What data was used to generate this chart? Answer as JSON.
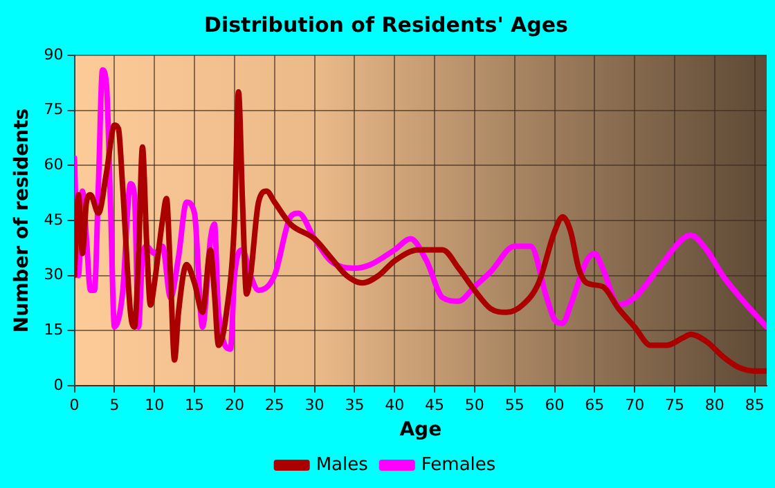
{
  "chart_data": {
    "type": "line",
    "title": "Distribution of Residents' Ages",
    "xlabel": "Age",
    "ylabel": "Number of residents",
    "xlim": [
      0,
      86.5
    ],
    "xticks": [
      0,
      5,
      10,
      15,
      20,
      25,
      30,
      35,
      40,
      45,
      50,
      55,
      60,
      65,
      70,
      75,
      80,
      85
    ],
    "ylim": [
      0,
      90
    ],
    "yticks": [
      0,
      15,
      30,
      45,
      60,
      75,
      90
    ],
    "grid": true,
    "legend": "bottom",
    "marker": "none",
    "line_style": "solid",
    "series": [
      {
        "name": "Males",
        "color": "#aa0000",
        "x": [
          0,
          0.5,
          1,
          1.5,
          2,
          3,
          4,
          5,
          5.5,
          6,
          7,
          7.5,
          8,
          8.5,
          9,
          9.5,
          10,
          11,
          11.5,
          12,
          12.5,
          13,
          14,
          15,
          16,
          17,
          17.5,
          18,
          19,
          20,
          20.5,
          21,
          21.5,
          22,
          23,
          24,
          25,
          27,
          30,
          32,
          34,
          36,
          38,
          40,
          43,
          46,
          48,
          50,
          52,
          54,
          56,
          58,
          60,
          61,
          62,
          63,
          64,
          66,
          68,
          70,
          72,
          74,
          76,
          77,
          79,
          81,
          83,
          85,
          86.5
        ],
        "values": [
          30,
          52,
          36,
          50,
          52,
          47,
          58,
          71,
          70,
          55,
          20,
          16,
          35,
          65,
          40,
          22,
          28,
          45,
          51,
          30,
          7,
          20,
          33,
          28,
          20,
          37,
          25,
          11,
          20,
          45,
          80,
          50,
          25,
          30,
          50,
          53,
          50,
          44,
          40,
          35,
          30,
          28,
          30,
          34,
          37,
          37,
          32,
          26,
          21,
          20,
          22,
          28,
          42,
          46,
          42,
          32,
          28,
          27,
          21,
          16,
          11,
          11,
          13,
          14,
          12,
          8,
          5,
          4,
          4
        ]
      },
      {
        "name": "Females",
        "color": "#ff00ff",
        "x": [
          0,
          0.5,
          1,
          1.5,
          2,
          2.5,
          3,
          3.5,
          4,
          4.5,
          5,
          6,
          7,
          7.5,
          8,
          8.5,
          9,
          10,
          11,
          12,
          13,
          14,
          15,
          16,
          17,
          17.5,
          18,
          19.5,
          20,
          21,
          22,
          23,
          25,
          27,
          28,
          30,
          32,
          35,
          37,
          40,
          42,
          44,
          46,
          48,
          50,
          52,
          55,
          57,
          59,
          60,
          61,
          62,
          64,
          65,
          66,
          68,
          70,
          73,
          76,
          77,
          79,
          81,
          84,
          86.5
        ],
        "values": [
          62,
          30,
          53,
          40,
          26,
          26,
          55,
          86,
          82,
          50,
          16,
          25,
          55,
          52,
          16,
          35,
          38,
          36,
          38,
          24,
          35,
          50,
          47,
          16,
          40,
          44,
          20,
          10,
          30,
          37,
          30,
          26,
          30,
          46,
          47,
          40,
          34,
          32,
          33,
          37,
          40,
          34,
          24,
          23,
          27,
          31,
          38,
          38,
          24,
          18,
          17,
          22,
          34,
          36,
          32,
          22,
          24,
          32,
          40,
          41,
          37,
          30,
          22,
          16
        ]
      }
    ]
  }
}
